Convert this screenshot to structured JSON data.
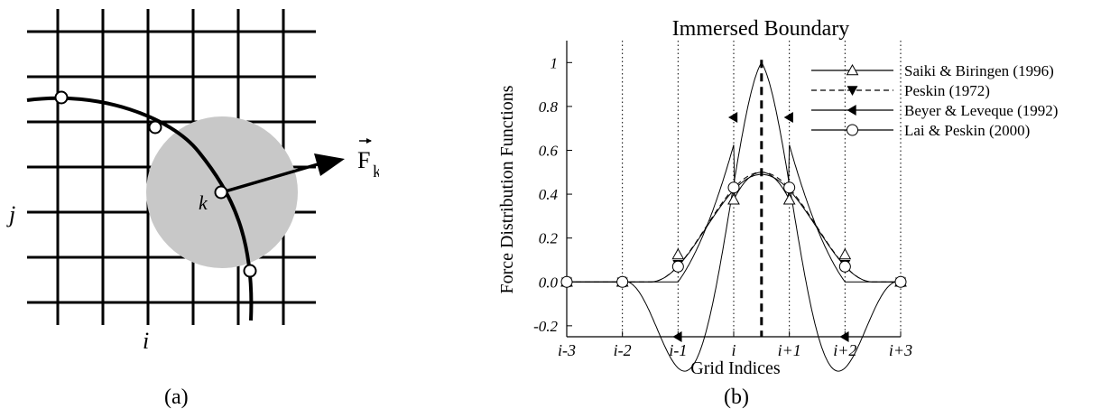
{
  "panel_a": {
    "caption": "(a)",
    "labels": {
      "i": "i",
      "j": "j",
      "k": "k",
      "force": "F",
      "force_sub": "k"
    }
  },
  "chart_data": {
    "type": "line",
    "title": "Immersed Boundary",
    "caption": "(b)",
    "xlabel": "Grid Indices",
    "ylabel": "Force Distribution Functions",
    "x": [
      -3,
      -2,
      -1,
      0,
      1,
      2,
      3
    ],
    "xticklabels": [
      "i-3",
      "i-2",
      "i-1",
      "i",
      "i+1",
      "i+2",
      "i+3"
    ],
    "yticks": [
      -0.2,
      0,
      0.2,
      0.4,
      0.6,
      0.8,
      1
    ],
    "yticklabels": [
      "-0.2",
      "0.0",
      "0.2",
      "0.4",
      "0.6",
      "0.8",
      "1"
    ],
    "xlim": [
      -3,
      3
    ],
    "ylim": [
      -0.25,
      1.1
    ],
    "boundary_x": 0.5,
    "legend_placement": "top-right",
    "series": [
      {
        "name": "Saiki & Biringen (1996)",
        "marker": "triangle-up-open",
        "line": "solid",
        "x": [
          -3,
          -2,
          -1,
          0,
          1,
          2,
          3
        ],
        "y": [
          0,
          0,
          0.125,
          0.375,
          0.375,
          0.125,
          0
        ]
      },
      {
        "name": "Peskin (1972)",
        "marker": "triangle-down-filled",
        "line": "dashed",
        "x": [
          -3,
          -2,
          -1,
          0,
          1,
          2,
          3
        ],
        "y": [
          0,
          0,
          0.08,
          0.42,
          0.42,
          0.08,
          0
        ]
      },
      {
        "name": "Beyer & Leveque (1992)",
        "marker": "triangle-left-filled",
        "line": "solid",
        "x": [
          -3,
          -2,
          -1,
          0,
          1,
          2,
          3
        ],
        "y": [
          0,
          0,
          -0.25,
          0.75,
          0.75,
          -0.25,
          0
        ]
      },
      {
        "name": "Lai & Peskin (2000)",
        "marker": "circle-open",
        "line": "solid",
        "x": [
          -3,
          -2,
          -1,
          0,
          1,
          2,
          3
        ],
        "y": [
          0,
          0,
          0.07,
          0.43,
          0.43,
          0.07,
          0
        ]
      }
    ]
  }
}
